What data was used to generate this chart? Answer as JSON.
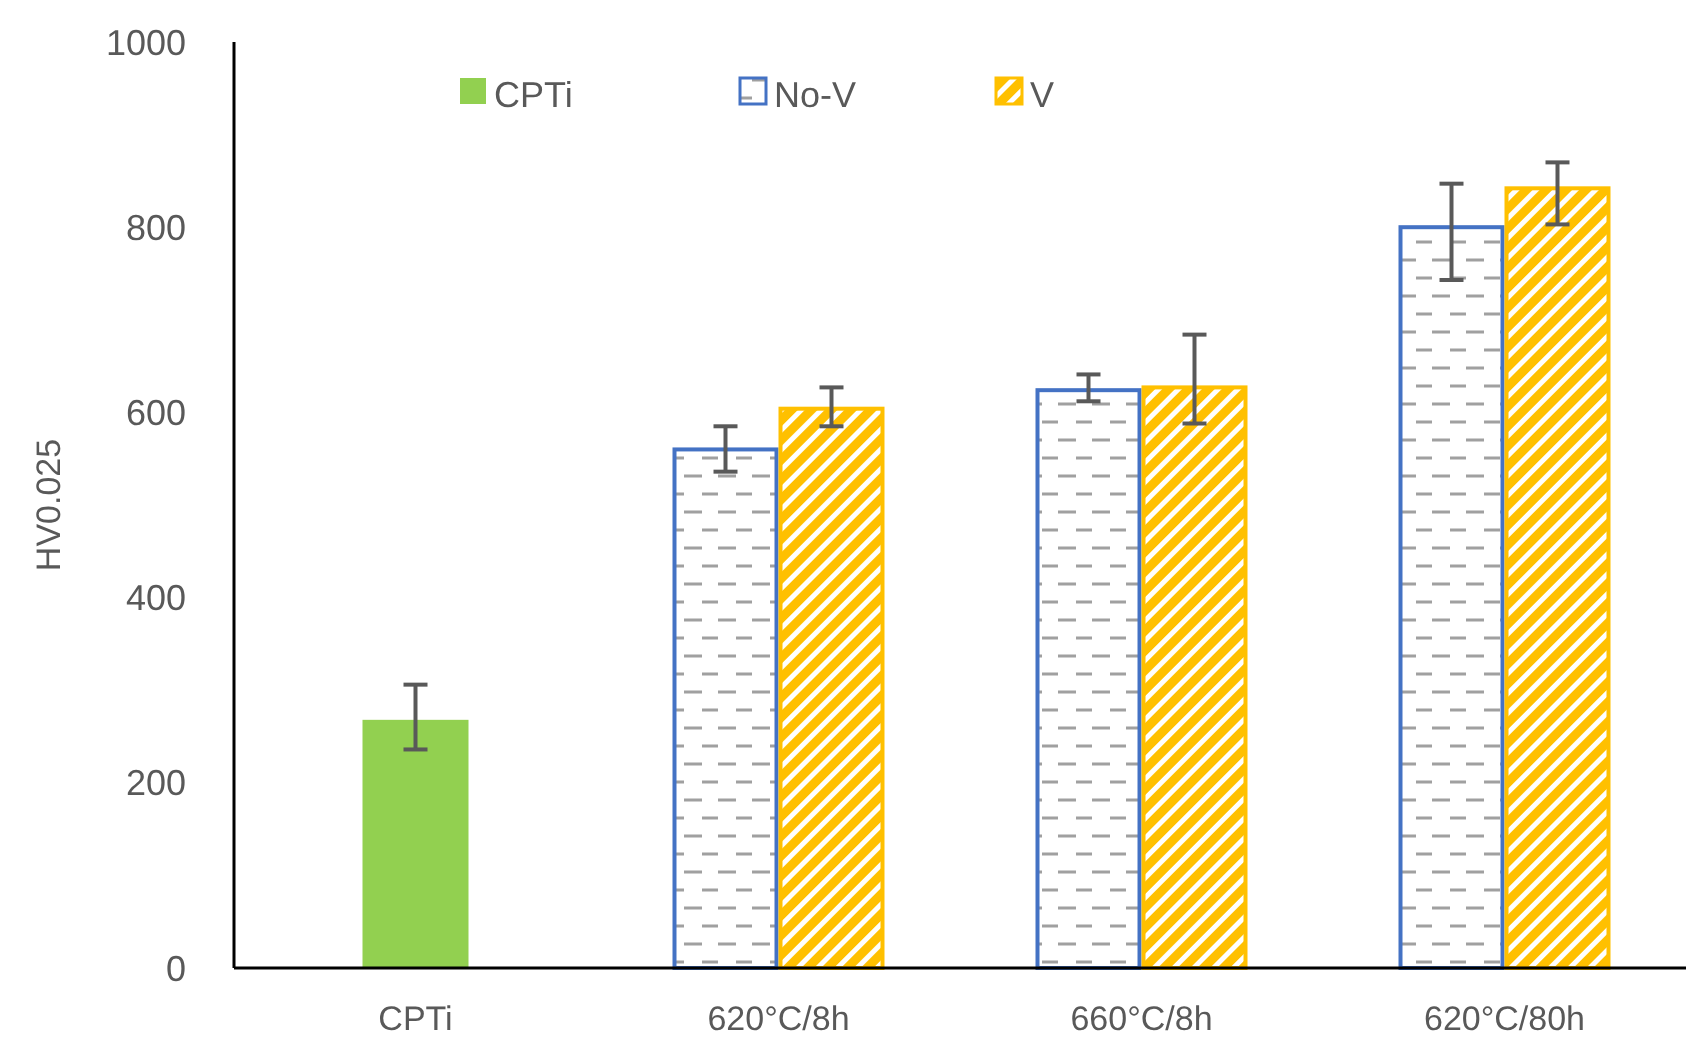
{
  "chart_data": {
    "type": "bar",
    "ylabel": "HV0.025",
    "categories": [
      "CPTi",
      "620°C/8h",
      "660°C/8h",
      "620°C/80h"
    ],
    "ylim": [
      0,
      1000
    ],
    "yticks": [
      0,
      200,
      400,
      600,
      800,
      1000
    ],
    "grid": false,
    "legend": "top",
    "series": [
      {
        "name": "CPTi",
        "color": "#92d050",
        "values": [
          268,
          null,
          null,
          null
        ],
        "errors": [
          [
            236,
            306
          ],
          null,
          null,
          null
        ]
      },
      {
        "name": "No-V",
        "color": "#4472c4",
        "values": [
          null,
          560,
          624,
          800
        ],
        "errors": [
          null,
          [
            536,
            585
          ],
          [
            612,
            641
          ],
          [
            743,
            847
          ]
        ]
      },
      {
        "name": "V",
        "color": "#ffc000",
        "values": [
          null,
          604,
          627,
          842
        ],
        "errors": [
          null,
          [
            585,
            627
          ],
          [
            588,
            684
          ],
          [
            803,
            870
          ]
        ]
      }
    ]
  }
}
